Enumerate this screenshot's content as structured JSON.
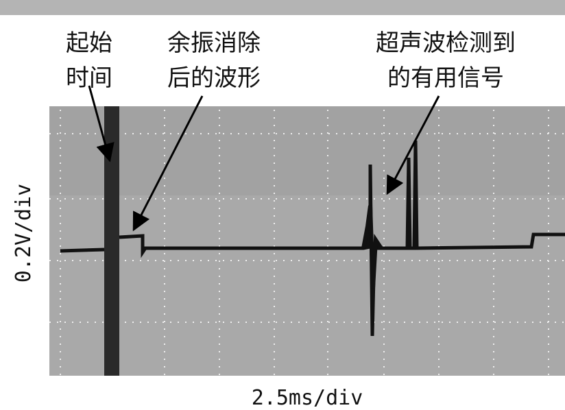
{
  "annotations": [
    {
      "lines": [
        "起始",
        "时间"
      ]
    },
    {
      "lines": [
        "余振消除",
        "后的波形"
      ]
    },
    {
      "lines": [
        "超声波检测到",
        "的有用信号"
      ]
    }
  ],
  "y_axis_label": "0.2V/div",
  "x_axis_label": "2.5ms/div"
}
